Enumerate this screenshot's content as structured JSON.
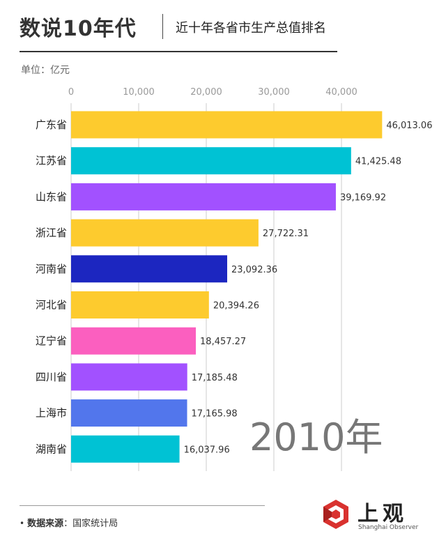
{
  "header": {
    "brand": "数说10年代",
    "subtitle": "近十年各省市生产总值排名"
  },
  "unit": "单位：亿元",
  "year_label": "2010年",
  "source": {
    "key": "数据来源",
    "sep": "：",
    "value": "国家统计局"
  },
  "logo": {
    "name": "上观",
    "sub": "Shanghai Observer"
  },
  "chart_data": {
    "type": "bar",
    "orientation": "horizontal",
    "title": "",
    "xlabel": "",
    "ylabel": "",
    "x_ticks": [
      "0",
      "10,000",
      "20,000",
      "30,000",
      "40,000"
    ],
    "xlim": [
      0,
      46000
    ],
    "grid": true,
    "categories": [
      "广东省",
      "江苏省",
      "山东省",
      "浙江省",
      "河南省",
      "河北省",
      "辽宁省",
      "四川省",
      "上海市",
      "湖南省"
    ],
    "values": [
      46013.06,
      41425.48,
      39169.92,
      27722.31,
      23092.36,
      20394.26,
      18457.27,
      17185.48,
      17165.98,
      16037.96
    ],
    "value_labels": [
      "46,013.06",
      "41,425.48",
      "39,169.92",
      "27,722.31",
      "23,092.36",
      "20,394.26",
      "18,457.27",
      "17,185.48",
      "17,165.98",
      "16,037.96"
    ],
    "colors": [
      "#FDCB2E",
      "#00C2D4",
      "#A251FF",
      "#FDCB2E",
      "#1C26C0",
      "#FDCB2E",
      "#FB5FBF",
      "#A251FF",
      "#5276EC",
      "#00C2D4"
    ]
  }
}
